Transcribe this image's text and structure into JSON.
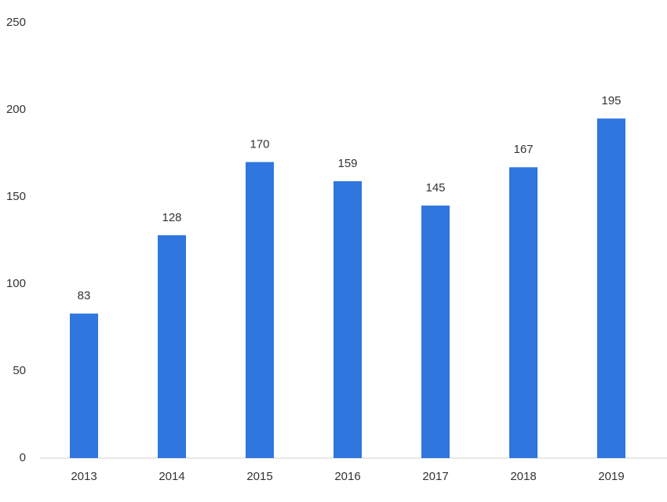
{
  "chart_data": {
    "type": "bar",
    "categories": [
      "2013",
      "2014",
      "2015",
      "2016",
      "2017",
      "2018",
      "2019"
    ],
    "values": [
      83,
      128,
      170,
      159,
      145,
      167,
      195
    ],
    "color": "#2f76de",
    "ylim": [
      0,
      250
    ],
    "yticks": [
      0,
      50,
      100,
      150,
      200,
      250
    ],
    "grid": false
  }
}
